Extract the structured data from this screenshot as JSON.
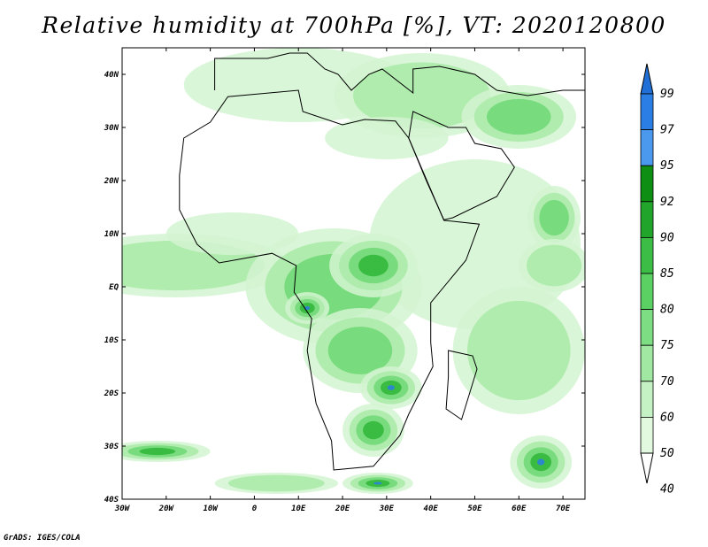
{
  "title": "Relative humidity at 700hPa [%], VT: 2020120800",
  "footer": "GrADS: IGES/COLA",
  "map": {
    "lon_range": [
      -30,
      75
    ],
    "lat_range": [
      -40,
      45
    ],
    "lat_ticks": [
      {
        "value": 40,
        "label": "40N"
      },
      {
        "value": 30,
        "label": "30N"
      },
      {
        "value": 20,
        "label": "20N"
      },
      {
        "value": 10,
        "label": "10N"
      },
      {
        "value": 0,
        "label": "EQ"
      },
      {
        "value": -10,
        "label": "10S"
      },
      {
        "value": -20,
        "label": "20S"
      },
      {
        "value": -30,
        "label": "30S"
      },
      {
        "value": -40,
        "label": "40S"
      }
    ],
    "lon_ticks": [
      {
        "value": -30,
        "label": "30W"
      },
      {
        "value": -20,
        "label": "20W"
      },
      {
        "value": -10,
        "label": "10W"
      },
      {
        "value": 0,
        "label": "0"
      },
      {
        "value": 10,
        "label": "10E"
      },
      {
        "value": 20,
        "label": "20E"
      },
      {
        "value": 30,
        "label": "30E"
      },
      {
        "value": 40,
        "label": "40E"
      },
      {
        "value": 50,
        "label": "50E"
      },
      {
        "value": 60,
        "label": "60E"
      },
      {
        "value": 70,
        "label": "70E"
      }
    ],
    "humid_regions": [
      {
        "lon": 10,
        "lat": 38,
        "rx": 26,
        "ry": 7,
        "level": 1
      },
      {
        "lon": 38,
        "lat": 36,
        "rx": 20,
        "ry": 8,
        "level": 2
      },
      {
        "lon": 60,
        "lat": 32,
        "rx": 13,
        "ry": 6,
        "level": 3
      },
      {
        "lon": 30,
        "lat": 28,
        "rx": 14,
        "ry": 4,
        "level": 1
      },
      {
        "lon": 50,
        "lat": 8,
        "rx": 24,
        "ry": 16,
        "level": 1
      },
      {
        "lon": 68,
        "lat": 13,
        "rx": 6,
        "ry": 6,
        "level": 3
      },
      {
        "lon": -18,
        "lat": 4,
        "rx": 26,
        "ry": 6,
        "level": 2
      },
      {
        "lon": -5,
        "lat": 10,
        "rx": 15,
        "ry": 4,
        "level": 1
      },
      {
        "lon": 18,
        "lat": 0,
        "rx": 20,
        "ry": 11,
        "level": 3
      },
      {
        "lon": 27,
        "lat": 4,
        "rx": 10,
        "ry": 6,
        "level": 4
      },
      {
        "lon": 12,
        "lat": -4,
        "rx": 5,
        "ry": 3,
        "level": 5
      },
      {
        "lon": 24,
        "lat": -12,
        "rx": 13,
        "ry": 8,
        "level": 3
      },
      {
        "lon": 31,
        "lat": -19,
        "rx": 7,
        "ry": 4,
        "level": 5
      },
      {
        "lon": 27,
        "lat": -27,
        "rx": 7,
        "ry": 5,
        "level": 4
      },
      {
        "lon": 60,
        "lat": -12,
        "rx": 15,
        "ry": 12,
        "level": 2
      },
      {
        "lon": -22,
        "lat": -31,
        "rx": 12,
        "ry": 2,
        "level": 4
      },
      {
        "lon": 28,
        "lat": -37,
        "rx": 8,
        "ry": 2,
        "level": 5
      },
      {
        "lon": 65,
        "lat": -33,
        "rx": 7,
        "ry": 5,
        "level": 5
      },
      {
        "lon": 5,
        "lat": -37,
        "rx": 14,
        "ry": 2,
        "level": 2
      },
      {
        "lon": 68,
        "lat": 4,
        "rx": 8,
        "ry": 5,
        "level": 2
      }
    ]
  },
  "colorbar": {
    "levels": [
      {
        "label": "99",
        "color": "#1f6fd6"
      },
      {
        "label": "97",
        "color": "#2b7ee3"
      },
      {
        "label": "95",
        "color": "#4a99ef"
      },
      {
        "label": "92",
        "color": "#0e8e12"
      },
      {
        "label": "90",
        "color": "#21a52a"
      },
      {
        "label": "85",
        "color": "#3cbd46"
      },
      {
        "label": "80",
        "color": "#5bd063"
      },
      {
        "label": "75",
        "color": "#7ddd82"
      },
      {
        "label": "70",
        "color": "#a1e8a3"
      },
      {
        "label": "60",
        "color": "#c4f2c4"
      },
      {
        "label": "50",
        "color": "#e2f9e0"
      },
      {
        "label": "40",
        "color": "#ffffff"
      }
    ]
  }
}
